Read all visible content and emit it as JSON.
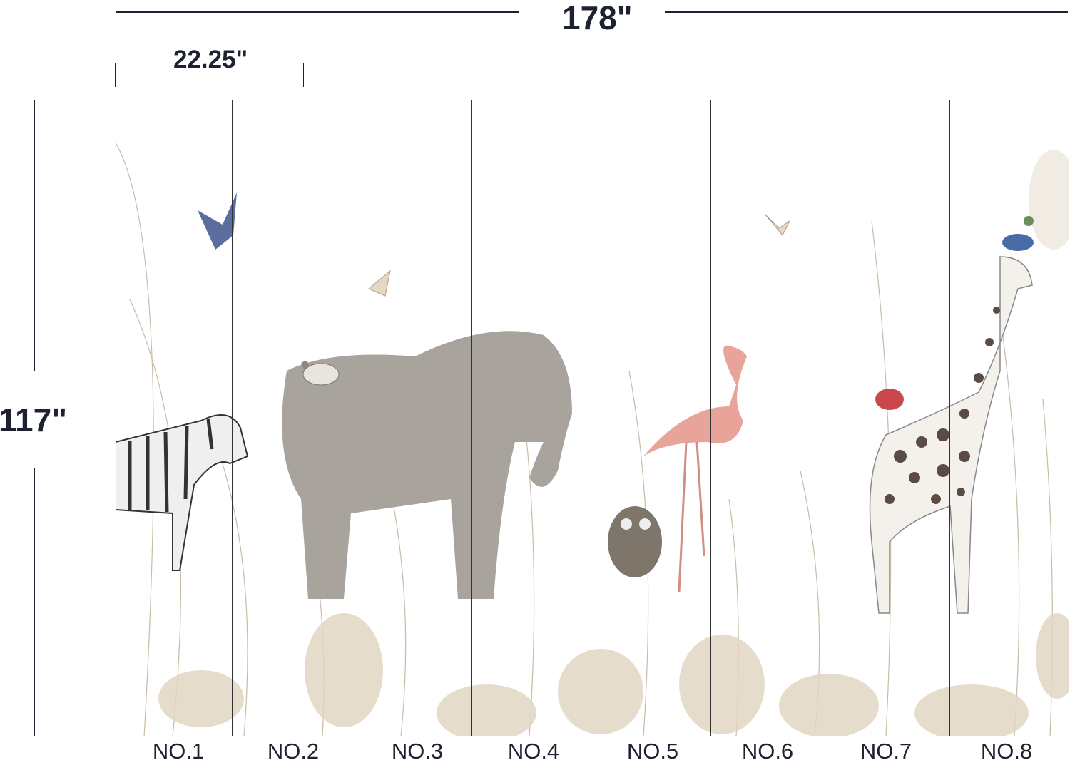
{
  "dimensions": {
    "total_width": "178\"",
    "panel_width": "22.25\"",
    "height": "117\""
  },
  "panels": [
    "NO.1",
    "NO.2",
    "NO.3",
    "NO.4",
    "NO.5",
    "NO.6",
    "NO.7",
    "NO.8"
  ],
  "colors": {
    "text": "#1c2230",
    "elephant": "#a8a39c",
    "flamingo": "#e9a49a",
    "foliage": "#d9cbb5"
  }
}
